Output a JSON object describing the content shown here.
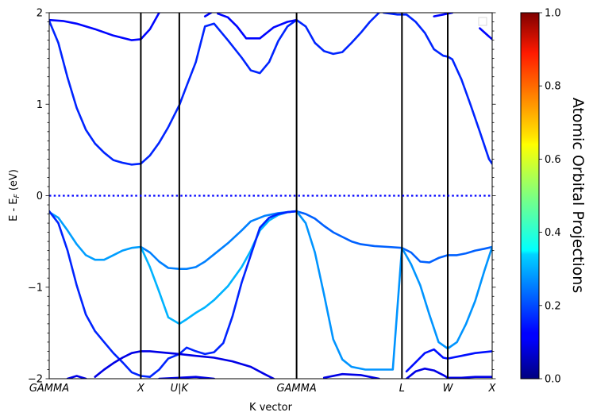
{
  "chart_data": {
    "type": "line",
    "xlabel": "K vector",
    "ylabel": "E - E",
    "ylabel_sub": "F",
    "ylabel_unit": " (eV)",
    "ylim": [
      -2,
      2
    ],
    "yticks": [
      -2,
      -1,
      0,
      1,
      2
    ],
    "ytick_labels": [
      "−2",
      "−1",
      "0",
      "1",
      "2"
    ],
    "xlim": [
      0,
      4.835
    ],
    "kpoints": [
      {
        "label": "GAMMA",
        "x": 0
      },
      {
        "label": "X",
        "x": 1.0
      },
      {
        "label": "U|K",
        "x": 1.42
      },
      {
        "label": "GAMMA",
        "x": 2.7
      },
      {
        "label": "L",
        "x": 3.85
      },
      {
        "label": "W",
        "x": 4.35
      },
      {
        "label": "X",
        "x": 4.835
      }
    ],
    "fermi_level": 0,
    "grid": false,
    "colorbar": {
      "label": "Atomic Orbital Projections",
      "colormap": "jet",
      "range": [
        0,
        1
      ],
      "ticks": [
        "0.0",
        "0.2",
        "0.4",
        "0.6",
        "0.8",
        "1.0"
      ]
    },
    "series": [
      {
        "points": [
          [
            0,
            1.91
          ],
          [
            0.1,
            1.67
          ],
          [
            0.2,
            1.29
          ],
          [
            0.3,
            0.96
          ],
          [
            0.4,
            0.72
          ],
          [
            0.5,
            0.57
          ],
          [
            0.6,
            0.47
          ],
          [
            0.7,
            0.39
          ],
          [
            0.8,
            0.36
          ],
          [
            0.9,
            0.34
          ],
          [
            1.0,
            0.35
          ],
          [
            1.1,
            0.44
          ],
          [
            1.2,
            0.58
          ],
          [
            1.3,
            0.75
          ],
          [
            1.42,
            0.99
          ],
          [
            1.5,
            1.2
          ],
          [
            1.6,
            1.46
          ],
          [
            1.7,
            1.85
          ],
          [
            1.8,
            1.88
          ],
          [
            1.95,
            1.7
          ],
          [
            2.1,
            1.51
          ],
          [
            2.2,
            1.37
          ],
          [
            2.3,
            1.34
          ],
          [
            2.4,
            1.46
          ],
          [
            2.5,
            1.69
          ],
          [
            2.6,
            1.85
          ],
          [
            2.7,
            1.92
          ],
          [
            2.8,
            1.85
          ],
          [
            2.9,
            1.67
          ],
          [
            3.0,
            1.58
          ],
          [
            3.1,
            1.55
          ],
          [
            3.2,
            1.57
          ],
          [
            3.3,
            1.67
          ],
          [
            3.4,
            1.78
          ],
          [
            3.5,
            1.9
          ],
          [
            3.6,
            2.0
          ]
        ],
        "proj": 0.16
      },
      {
        "points": [
          [
            0,
            1.92
          ],
          [
            0.15,
            1.91
          ],
          [
            0.3,
            1.88
          ],
          [
            0.5,
            1.82
          ],
          [
            0.7,
            1.75
          ],
          [
            0.9,
            1.7
          ],
          [
            1.0,
            1.71
          ],
          [
            1.1,
            1.82
          ],
          [
            1.2,
            2.0
          ]
        ],
        "proj": 0.13
      },
      {
        "points": [
          [
            1.7,
            1.96
          ],
          [
            1.8,
            2.02
          ]
        ],
        "proj": 0.13
      },
      {
        "points": [
          [
            1.84,
            1.99
          ],
          [
            1.95,
            1.95
          ],
          [
            2.05,
            1.85
          ],
          [
            2.15,
            1.72
          ],
          [
            2.3,
            1.72
          ],
          [
            2.45,
            1.84
          ],
          [
            2.6,
            1.9
          ],
          [
            2.7,
            1.92
          ]
        ],
        "proj": 0.13
      },
      {
        "points": [
          [
            3.65,
            2.0
          ],
          [
            3.8,
            1.98
          ],
          [
            3.9,
            1.98
          ],
          [
            4.0,
            1.9
          ],
          [
            4.1,
            1.78
          ],
          [
            4.2,
            1.6
          ],
          [
            4.3,
            1.53
          ],
          [
            4.35,
            1.52
          ],
          [
            4.4,
            1.49
          ],
          [
            4.5,
            1.27
          ],
          [
            4.6,
            0.99
          ],
          [
            4.7,
            0.7
          ],
          [
            4.8,
            0.4
          ],
          [
            4.835,
            0.35
          ]
        ],
        "proj": 0.16
      },
      {
        "points": [
          [
            4.2,
            1.96
          ],
          [
            4.3,
            1.98
          ],
          [
            4.4,
            2.0
          ]
        ],
        "proj": 0.13
      },
      {
        "points": [
          [
            4.7,
            1.83
          ],
          [
            4.8,
            1.74
          ],
          [
            4.835,
            1.71
          ]
        ],
        "proj": 0.13
      },
      {
        "points": [
          [
            0,
            -0.18
          ],
          [
            0.1,
            -0.24
          ],
          [
            0.2,
            -0.38
          ],
          [
            0.3,
            -0.53
          ],
          [
            0.4,
            -0.65
          ],
          [
            0.5,
            -0.7
          ],
          [
            0.6,
            -0.7
          ],
          [
            0.7,
            -0.65
          ],
          [
            0.8,
            -0.6
          ],
          [
            0.9,
            -0.57
          ],
          [
            1.0,
            -0.56
          ]
        ],
        "proj": 0.28
      },
      {
        "points": [
          [
            1.0,
            -0.56
          ],
          [
            1.1,
            -0.62
          ],
          [
            1.2,
            -0.72
          ],
          [
            1.3,
            -0.79
          ],
          [
            1.42,
            -0.8
          ],
          [
            1.5,
            -0.8
          ],
          [
            1.6,
            -0.78
          ],
          [
            1.7,
            -0.72
          ],
          [
            1.8,
            -0.64
          ],
          [
            1.95,
            -0.52
          ],
          [
            2.1,
            -0.38
          ],
          [
            2.2,
            -0.28
          ],
          [
            2.35,
            -0.22
          ],
          [
            2.5,
            -0.19
          ],
          [
            2.6,
            -0.18
          ],
          [
            2.7,
            -0.17
          ]
        ],
        "proj": 0.25
      },
      {
        "points": [
          [
            1.0,
            -0.56
          ],
          [
            1.1,
            -0.78
          ],
          [
            1.2,
            -1.05
          ],
          [
            1.3,
            -1.33
          ],
          [
            1.42,
            -1.4
          ],
          [
            1.5,
            -1.35
          ],
          [
            1.6,
            -1.28
          ],
          [
            1.7,
            -1.22
          ],
          [
            1.8,
            -1.14
          ],
          [
            1.95,
            -0.99
          ],
          [
            2.1,
            -0.78
          ],
          [
            2.2,
            -0.6
          ],
          [
            2.3,
            -0.38
          ],
          [
            2.4,
            -0.27
          ],
          [
            2.5,
            -0.21
          ],
          [
            2.6,
            -0.18
          ],
          [
            2.7,
            -0.17
          ]
        ],
        "proj": 0.3
      },
      {
        "points": [
          [
            2.7,
            -0.17
          ],
          [
            2.8,
            -0.2
          ],
          [
            2.9,
            -0.25
          ],
          [
            3.0,
            -0.33
          ],
          [
            3.1,
            -0.4
          ],
          [
            3.2,
            -0.45
          ],
          [
            3.3,
            -0.5
          ],
          [
            3.4,
            -0.53
          ],
          [
            3.55,
            -0.55
          ],
          [
            3.7,
            -0.56
          ],
          [
            3.85,
            -0.57
          ],
          [
            3.95,
            -0.62
          ],
          [
            4.05,
            -0.72
          ],
          [
            4.15,
            -0.73
          ],
          [
            4.25,
            -0.68
          ],
          [
            4.35,
            -0.65
          ],
          [
            4.45,
            -0.65
          ],
          [
            4.55,
            -0.63
          ],
          [
            4.65,
            -0.6
          ],
          [
            4.75,
            -0.58
          ],
          [
            4.835,
            -0.56
          ]
        ],
        "proj": 0.22
      },
      {
        "points": [
          [
            2.7,
            -0.17
          ],
          [
            2.8,
            -0.3
          ],
          [
            2.9,
            -0.62
          ],
          [
            3.0,
            -1.08
          ],
          [
            3.1,
            -1.57
          ],
          [
            3.2,
            -1.79
          ],
          [
            3.3,
            -1.87
          ],
          [
            3.45,
            -1.9
          ],
          [
            3.6,
            -1.9
          ],
          [
            3.75,
            -1.9
          ],
          [
            3.85,
            -0.57
          ],
          [
            3.95,
            -0.75
          ],
          [
            4.05,
            -0.98
          ],
          [
            4.15,
            -1.3
          ],
          [
            4.25,
            -1.6
          ],
          [
            4.35,
            -1.67
          ],
          [
            4.45,
            -1.6
          ],
          [
            4.55,
            -1.4
          ],
          [
            4.65,
            -1.15
          ],
          [
            4.75,
            -0.82
          ],
          [
            4.835,
            -0.56
          ]
        ],
        "proj": 0.27
      },
      {
        "points": [
          [
            0,
            -0.17
          ],
          [
            0.1,
            -0.3
          ],
          [
            0.2,
            -0.6
          ],
          [
            0.3,
            -0.98
          ],
          [
            0.4,
            -1.3
          ],
          [
            0.5,
            -1.48
          ],
          [
            0.6,
            -1.6
          ],
          [
            0.7,
            -1.72
          ],
          [
            0.8,
            -1.82
          ],
          [
            0.9,
            -1.93
          ],
          [
            1.0,
            -1.97
          ],
          [
            1.1,
            -1.98
          ],
          [
            1.2,
            -1.9
          ],
          [
            1.3,
            -1.78
          ],
          [
            1.42,
            -1.73
          ],
          [
            1.5,
            -1.66
          ],
          [
            1.6,
            -1.7
          ],
          [
            1.7,
            -1.73
          ],
          [
            1.8,
            -1.71
          ],
          [
            1.9,
            -1.61
          ],
          [
            2.0,
            -1.32
          ],
          [
            2.1,
            -0.95
          ],
          [
            2.2,
            -0.65
          ],
          [
            2.3,
            -0.35
          ],
          [
            2.4,
            -0.24
          ],
          [
            2.5,
            -0.2
          ],
          [
            2.6,
            -0.18
          ],
          [
            2.7,
            -0.17
          ]
        ],
        "proj": 0.16
      },
      {
        "points": [
          [
            0.5,
            -1.98
          ],
          [
            0.6,
            -1.9
          ],
          [
            0.7,
            -1.83
          ],
          [
            0.8,
            -1.77
          ],
          [
            0.9,
            -1.72
          ],
          [
            1.0,
            -1.7
          ],
          [
            1.1,
            -1.7
          ],
          [
            1.2,
            -1.71
          ],
          [
            1.42,
            -1.73
          ],
          [
            1.6,
            -1.75
          ],
          [
            1.8,
            -1.77
          ],
          [
            2.0,
            -1.81
          ],
          [
            2.2,
            -1.87
          ],
          [
            2.35,
            -1.95
          ],
          [
            2.45,
            -2.0
          ]
        ],
        "proj": 0.1
      },
      {
        "points": [
          [
            0.2,
            -2.0
          ],
          [
            0.3,
            -1.97
          ],
          [
            0.4,
            -2.0
          ]
        ],
        "proj": 0.1
      },
      {
        "points": [
          [
            1.2,
            -2.0
          ],
          [
            1.42,
            -1.99
          ],
          [
            1.6,
            -1.98
          ],
          [
            1.8,
            -2.0
          ]
        ],
        "proj": 0.1
      },
      {
        "points": [
          [
            3.0,
            -1.99
          ],
          [
            3.2,
            -1.95
          ],
          [
            3.4,
            -1.96
          ],
          [
            3.6,
            -2.0
          ]
        ],
        "proj": 0.1
      },
      {
        "points": [
          [
            3.9,
            -2.0
          ],
          [
            4.0,
            -1.92
          ],
          [
            4.1,
            -1.89
          ],
          [
            4.2,
            -1.91
          ],
          [
            4.3,
            -1.96
          ],
          [
            4.35,
            -1.99
          ],
          [
            4.5,
            -1.99
          ],
          [
            4.65,
            -1.98
          ],
          [
            4.835,
            -1.98
          ]
        ],
        "proj": 0.1
      },
      {
        "points": [
          [
            3.9,
            -1.92
          ],
          [
            4.0,
            -1.82
          ],
          [
            4.1,
            -1.72
          ],
          [
            4.2,
            -1.68
          ],
          [
            4.3,
            -1.77
          ],
          [
            4.35,
            -1.78
          ],
          [
            4.5,
            -1.75
          ],
          [
            4.65,
            -1.72
          ],
          [
            4.835,
            -1.7
          ]
        ],
        "proj": 0.14
      }
    ]
  },
  "legend": {
    "position": "upper-right",
    "entries": []
  }
}
